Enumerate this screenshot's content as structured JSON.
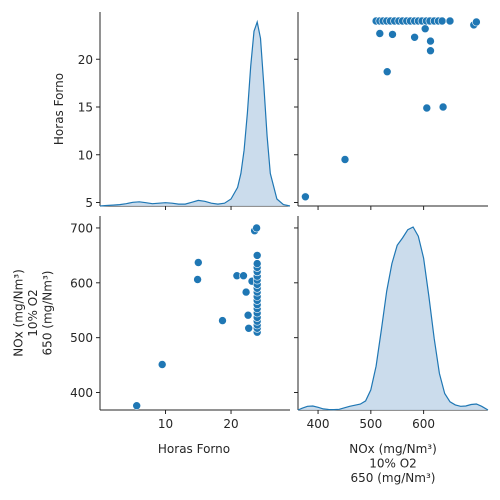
{
  "chart_data": {
    "type": "scatter",
    "style": "pairplot",
    "color": "#1f77b4",
    "kde_fill": "#c5d8ea",
    "variables": [
      {
        "key": "horas",
        "label_lines": [
          "Horas Forno"
        ],
        "ticks": [
          10,
          20
        ],
        "ylim_ticks": [
          5,
          10,
          15,
          20
        ],
        "range": [
          0,
          29
        ]
      },
      {
        "key": "nox",
        "label_lines": [
          "NOx (mg/Nm³)",
          "10% O2",
          "650 (mg/Nm³)"
        ],
        "ticks": [
          400,
          500,
          600,
          700
        ],
        "range": [
          362,
          722
        ]
      }
    ],
    "points": [
      {
        "horas": 5.6,
        "nox": 376
      },
      {
        "horas": 9.5,
        "nox": 451
      },
      {
        "horas": 14.9,
        "nox": 606
      },
      {
        "horas": 15.0,
        "nox": 637
      },
      {
        "horas": 18.7,
        "nox": 531
      },
      {
        "horas": 20.9,
        "nox": 613
      },
      {
        "horas": 21.9,
        "nox": 613
      },
      {
        "horas": 22.3,
        "nox": 583
      },
      {
        "horas": 22.6,
        "nox": 541
      },
      {
        "horas": 22.7,
        "nox": 517
      },
      {
        "horas": 23.2,
        "nox": 603
      },
      {
        "horas": 23.6,
        "nox": 695
      },
      {
        "horas": 23.9,
        "nox": 700
      },
      {
        "horas": 24,
        "nox": 510
      },
      {
        "horas": 24,
        "nox": 517
      },
      {
        "horas": 24,
        "nox": 523
      },
      {
        "horas": 24,
        "nox": 530
      },
      {
        "horas": 24,
        "nox": 537
      },
      {
        "horas": 24,
        "nox": 545
      },
      {
        "horas": 24,
        "nox": 553
      },
      {
        "horas": 24,
        "nox": 560
      },
      {
        "horas": 24,
        "nox": 568
      },
      {
        "horas": 24,
        "nox": 575
      },
      {
        "horas": 24,
        "nox": 583
      },
      {
        "horas": 24,
        "nox": 590
      },
      {
        "horas": 24,
        "nox": 597
      },
      {
        "horas": 24,
        "nox": 605
      },
      {
        "horas": 24,
        "nox": 612
      },
      {
        "horas": 24,
        "nox": 620
      },
      {
        "horas": 24,
        "nox": 628
      },
      {
        "horas": 24,
        "nox": 635
      },
      {
        "horas": 24,
        "nox": 650
      }
    ],
    "kde": {
      "horas": {
        "x": [
          0,
          1,
          2,
          3,
          4,
          5,
          6,
          7,
          8,
          9,
          10,
          11,
          12,
          13,
          14,
          15,
          16,
          17,
          18,
          19,
          20,
          21,
          21.5,
          22,
          22.5,
          23,
          23.5,
          24,
          24.5,
          25,
          25.5,
          26,
          27,
          28,
          29
        ],
        "density": [
          0.0,
          0.001,
          0.002,
          0.003,
          0.005,
          0.008,
          0.009,
          0.007,
          0.005,
          0.006,
          0.007,
          0.006,
          0.004,
          0.004,
          0.008,
          0.012,
          0.01,
          0.006,
          0.004,
          0.006,
          0.015,
          0.04,
          0.07,
          0.12,
          0.2,
          0.3,
          0.375,
          0.395,
          0.36,
          0.26,
          0.15,
          0.07,
          0.015,
          0.003,
          0.0
        ]
      },
      "nox": {
        "x": [
          362,
          370,
          380,
          390,
          400,
          410,
          420,
          430,
          440,
          450,
          460,
          470,
          480,
          490,
          500,
          510,
          520,
          530,
          540,
          550,
          560,
          570,
          580,
          590,
          600,
          610,
          620,
          630,
          640,
          650,
          660,
          670,
          680,
          690,
          700,
          710,
          722
        ],
        "density": [
          0.0,
          0.01,
          0.02,
          0.022,
          0.015,
          0.006,
          0.003,
          0.002,
          0.004,
          0.012,
          0.02,
          0.026,
          0.032,
          0.05,
          0.11,
          0.24,
          0.44,
          0.65,
          0.8,
          0.9,
          0.94,
          0.985,
          1.0,
          0.95,
          0.83,
          0.62,
          0.39,
          0.2,
          0.09,
          0.045,
          0.028,
          0.02,
          0.022,
          0.03,
          0.033,
          0.02,
          0.0
        ]
      }
    }
  }
}
